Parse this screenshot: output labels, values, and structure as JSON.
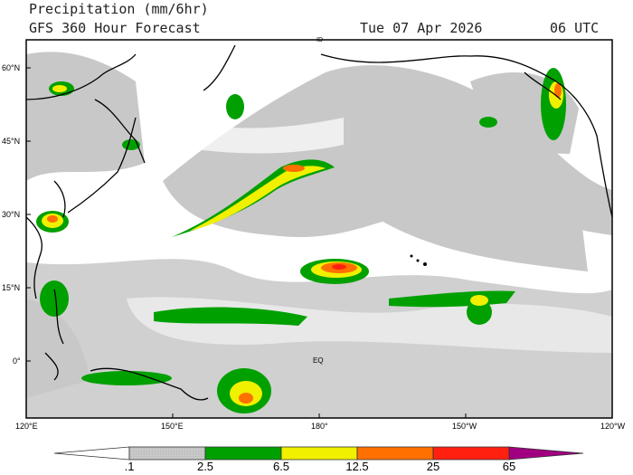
{
  "header": {
    "title": "Precipitation (mm/6hr)",
    "model": "GFS 360 Hour Forecast",
    "date": "Tue 07 Apr 2026",
    "time": "06 UTC"
  },
  "map": {
    "lat_labels": [
      "60°N",
      "45°N",
      "30°N",
      "15°N",
      "0°"
    ],
    "lon_labels": [
      "120°E",
      "150°E",
      "180°",
      "150°W",
      "120°W"
    ],
    "annotations": [
      "ID",
      "EQ"
    ],
    "land_color": "#ffffff",
    "ocean_color": "#ffffff",
    "coast_color": "#000000"
  },
  "colorbar": {
    "labels": [
      ".1",
      "2.5",
      "6.5",
      "12.5",
      "25",
      "65"
    ],
    "colors": [
      "#ffffff",
      "#c8c8c8",
      "#00a000",
      "#f0f000",
      "#ff7000",
      "#ff2010",
      "#a00080"
    ]
  }
}
